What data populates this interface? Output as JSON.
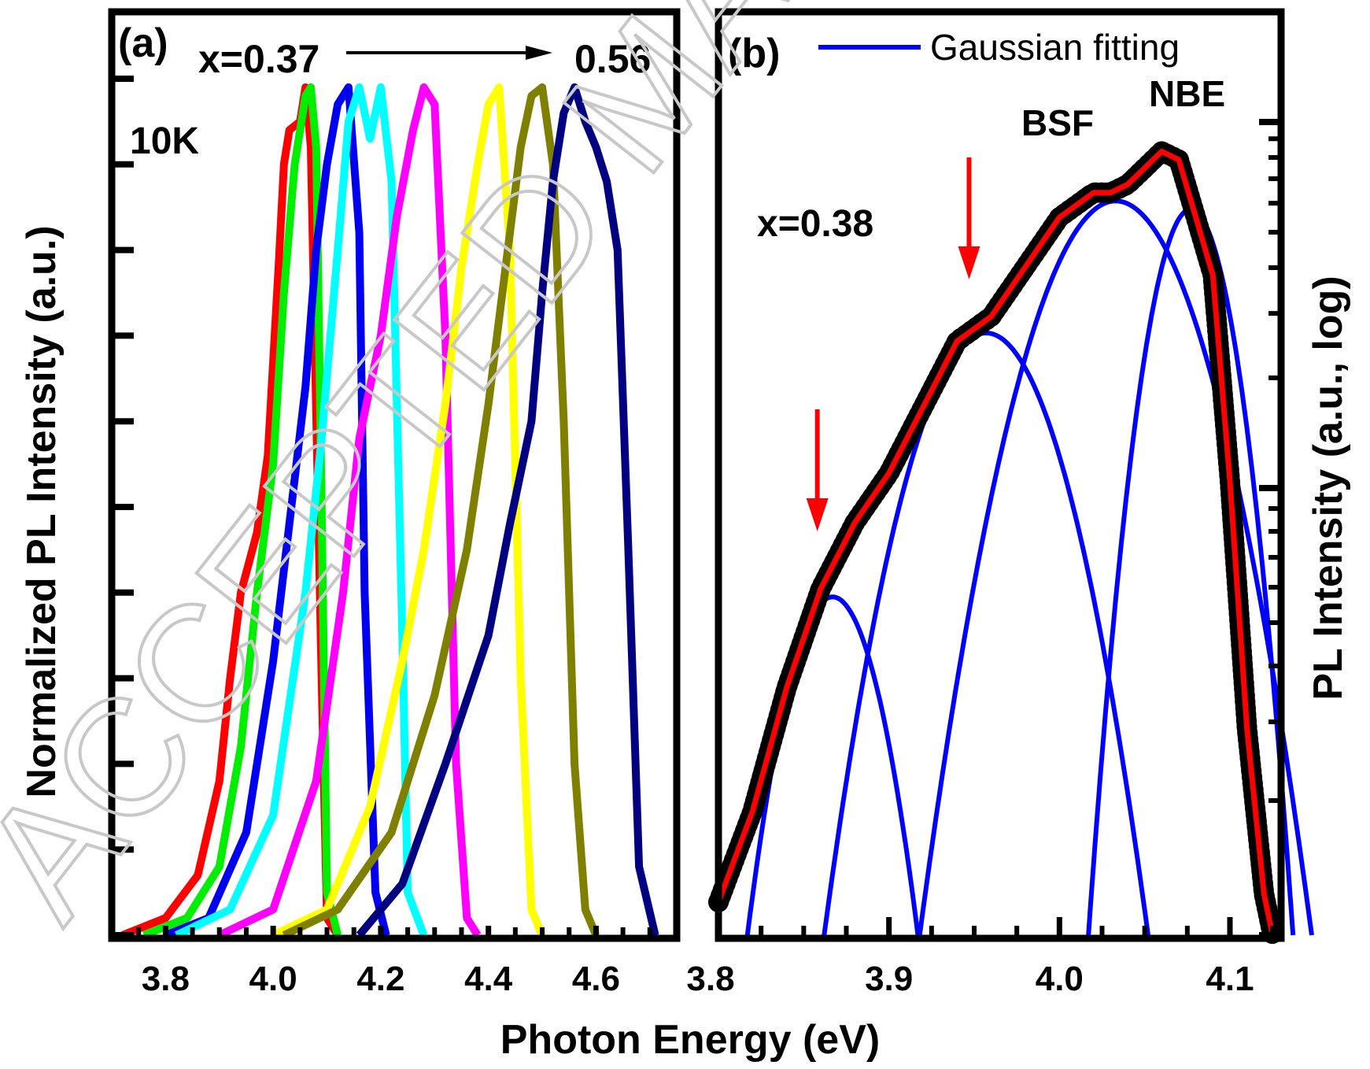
{
  "chart_data": [
    {
      "type": "line",
      "panel_label": "(a)",
      "annotation_range": {
        "start": "x=0.37",
        "end": "0.56"
      },
      "annotation_temp": "10K",
      "ylabel": "Normalized PL Intensity (a.u.)",
      "xlim": [
        3.7,
        4.75
      ],
      "ylim": [
        0,
        1.0
      ],
      "x_ticks": [
        "3.8",
        "4.0",
        "4.2",
        "4.4",
        "4.6"
      ],
      "series": [
        {
          "color": "#ff0000",
          "x": [
            3.72,
            3.8,
            3.86,
            3.9,
            3.92,
            3.94,
            3.97,
            3.99,
            4.01,
            4.02,
            4.03,
            4.05,
            4.06,
            4.07,
            4.09,
            4.1,
            4.12
          ],
          "y": [
            0.0,
            0.02,
            0.07,
            0.18,
            0.3,
            0.4,
            0.47,
            0.56,
            0.78,
            0.9,
            0.94,
            0.95,
            0.99,
            0.92,
            0.3,
            0.02,
            0.0
          ]
        },
        {
          "color": "#00ee00",
          "x": [
            3.76,
            3.84,
            3.9,
            3.94,
            3.97,
            4.0,
            4.02,
            4.04,
            4.06,
            4.07,
            4.08,
            4.09,
            4.1,
            4.12
          ],
          "y": [
            0.0,
            0.02,
            0.08,
            0.22,
            0.4,
            0.55,
            0.75,
            0.9,
            0.98,
            0.99,
            0.92,
            0.5,
            0.05,
            0.0
          ]
        },
        {
          "color": "#0000ee",
          "x": [
            3.8,
            3.88,
            3.95,
            4.0,
            4.03,
            4.06,
            4.08,
            4.1,
            4.12,
            4.14,
            4.16,
            4.17,
            4.19,
            4.21
          ],
          "y": [
            0.0,
            0.02,
            0.12,
            0.32,
            0.48,
            0.64,
            0.8,
            0.9,
            0.97,
            0.99,
            0.82,
            0.4,
            0.05,
            0.0
          ]
        },
        {
          "color": "#00ffff",
          "x": [
            3.82,
            3.92,
            4.0,
            4.06,
            4.09,
            4.12,
            4.14,
            4.16,
            4.18,
            4.2,
            4.22,
            4.24,
            4.25,
            4.28
          ],
          "y": [
            0.0,
            0.03,
            0.14,
            0.4,
            0.58,
            0.8,
            0.95,
            0.99,
            0.93,
            0.99,
            0.88,
            0.35,
            0.05,
            0.0
          ]
        },
        {
          "color": "#ff00ff",
          "x": [
            3.9,
            4.0,
            4.08,
            4.13,
            4.16,
            4.2,
            4.23,
            4.26,
            4.28,
            4.3,
            4.32,
            4.34,
            4.36,
            4.38
          ],
          "y": [
            0.0,
            0.03,
            0.18,
            0.4,
            0.58,
            0.7,
            0.84,
            0.94,
            0.99,
            0.97,
            0.7,
            0.2,
            0.02,
            0.0
          ]
        },
        {
          "color": "#ffff00",
          "x": [
            4.0,
            4.1,
            4.18,
            4.24,
            4.28,
            4.32,
            4.35,
            4.38,
            4.4,
            4.42,
            4.44,
            4.46,
            4.48,
            4.5
          ],
          "y": [
            0.0,
            0.03,
            0.15,
            0.32,
            0.45,
            0.62,
            0.78,
            0.9,
            0.97,
            0.99,
            0.8,
            0.3,
            0.03,
            0.0
          ]
        },
        {
          "color": "#808000",
          "x": [
            4.02,
            4.12,
            4.22,
            4.3,
            4.36,
            4.4,
            4.44,
            4.46,
            4.48,
            4.5,
            4.52,
            4.54,
            4.56,
            4.58,
            4.6
          ],
          "y": [
            0.0,
            0.03,
            0.12,
            0.28,
            0.45,
            0.62,
            0.82,
            0.92,
            0.98,
            0.99,
            0.9,
            0.6,
            0.2,
            0.03,
            0.0
          ]
        },
        {
          "color": "#000080",
          "x": [
            4.16,
            4.24,
            4.32,
            4.4,
            4.44,
            4.48,
            4.5,
            4.52,
            4.54,
            4.56,
            4.58,
            4.6,
            4.62,
            4.64,
            4.66,
            4.68,
            4.71
          ],
          "y": [
            0.0,
            0.06,
            0.2,
            0.35,
            0.48,
            0.6,
            0.75,
            0.88,
            0.96,
            0.99,
            0.95,
            0.92,
            0.88,
            0.8,
            0.45,
            0.08,
            0.0
          ]
        }
      ]
    },
    {
      "type": "line",
      "panel_label": "(b)",
      "legend": "Gaussian fitting",
      "annotation_x": "x=0.38",
      "peak_labels": [
        "BSF",
        "NBE"
      ],
      "ylabel": "PL Intensity (a.u., log)",
      "xlabel": "Photon Energy (eV)",
      "y_scale": "log",
      "xlim": [
        3.8,
        4.13
      ],
      "x_ticks": [
        "3.8",
        "3.9",
        "4.0",
        "4.1"
      ],
      "data": {
        "x": [
          3.8,
          3.82,
          3.84,
          3.86,
          3.88,
          3.9,
          3.92,
          3.94,
          3.96,
          3.98,
          4.0,
          4.02,
          4.03,
          4.04,
          4.05,
          4.06,
          4.07,
          4.08,
          4.09,
          4.1,
          4.11,
          4.12,
          4.125
        ],
        "y": [
          0.04,
          0.15,
          0.3,
          0.42,
          0.5,
          0.56,
          0.64,
          0.72,
          0.75,
          0.81,
          0.87,
          0.9,
          0.9,
          0.91,
          0.93,
          0.95,
          0.94,
          0.87,
          0.8,
          0.55,
          0.25,
          0.05,
          0.0
        ]
      },
      "gaussians": [
        {
          "center": 3.867,
          "peak": 0.41
        },
        {
          "center": 3.957,
          "peak": 0.73
        },
        {
          "center": 4.033,
          "peak": 0.89
        },
        {
          "center": 4.077,
          "peak": 0.88
        }
      ],
      "arrows_x": [
        3.858,
        3.947
      ]
    }
  ],
  "shared_xlabel": "Photon Energy (eV)",
  "watermark": "ACCEPTED MANUSCRIPT",
  "colors": {
    "data": "#000000",
    "fit": "#ff0000",
    "gaussian": "#0000ff",
    "arrow": "#ff0000"
  }
}
